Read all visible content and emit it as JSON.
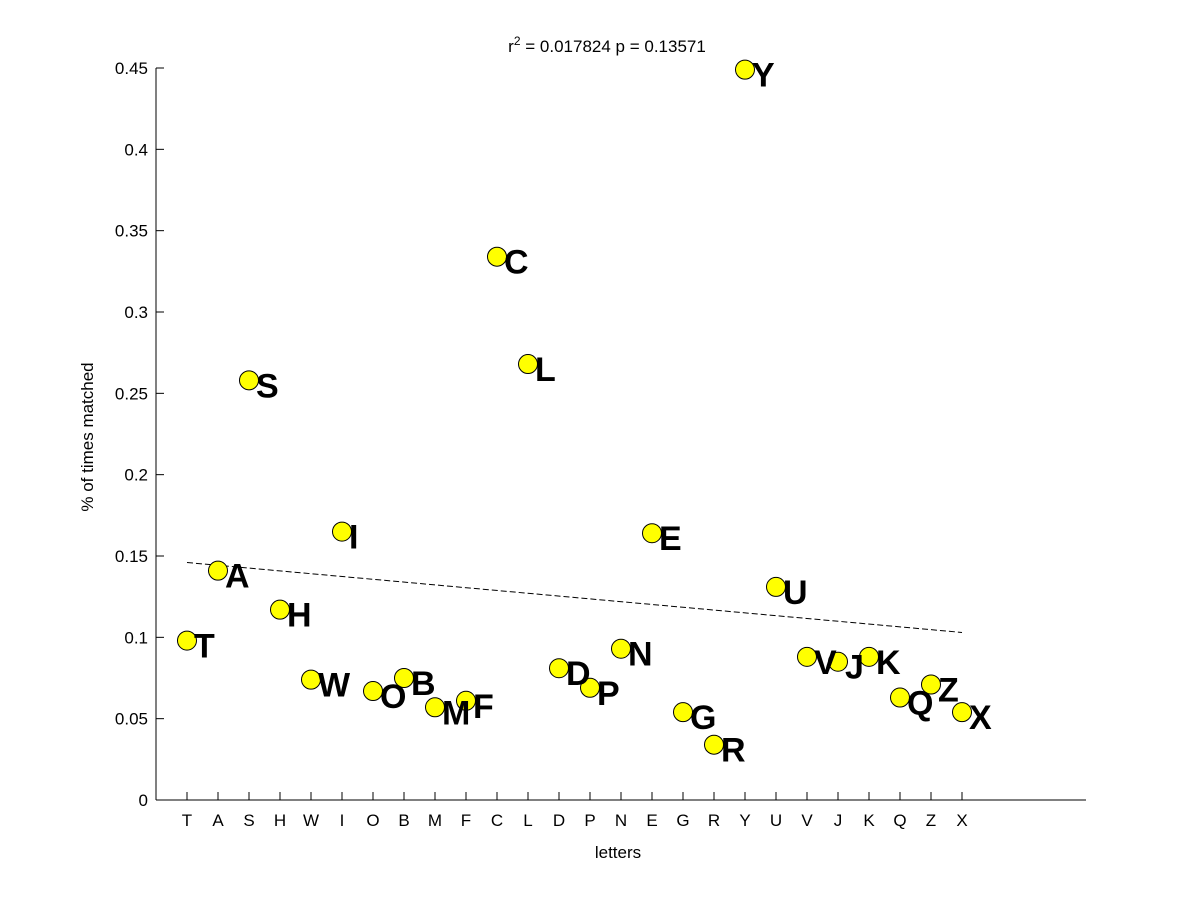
{
  "chart_data": {
    "type": "scatter",
    "title_prefix": "r",
    "title_superscript": "2",
    "title_suffix": " = 0.017824 p = 0.13571",
    "xlabel": "letters",
    "ylabel": "% of times matched",
    "ylim": [
      0,
      0.45
    ],
    "yticks": [
      "0",
      "0.05",
      "0.1",
      "0.15",
      "0.2",
      "0.25",
      "0.3",
      "0.35",
      "0.4",
      "0.45"
    ],
    "categories": [
      "T",
      "A",
      "S",
      "H",
      "W",
      "I",
      "O",
      "B",
      "M",
      "F",
      "C",
      "L",
      "D",
      "P",
      "N",
      "E",
      "G",
      "R",
      "Y",
      "U",
      "V",
      "J",
      "K",
      "Q",
      "Z",
      "X"
    ],
    "values": [
      0.098,
      0.141,
      0.258,
      0.117,
      0.074,
      0.165,
      0.067,
      0.075,
      0.057,
      0.061,
      0.334,
      0.268,
      0.081,
      0.069,
      0.093,
      0.164,
      0.054,
      0.034,
      0.449,
      0.131,
      0.088,
      0.085,
      0.088,
      0.063,
      0.071,
      0.054
    ],
    "trendline": {
      "style": "dashed",
      "y_start": 0.146,
      "y_end": 0.103
    },
    "marker_color": "#ffff00",
    "marker_edge_color": "#000000",
    "grid": false,
    "legend": false
  }
}
